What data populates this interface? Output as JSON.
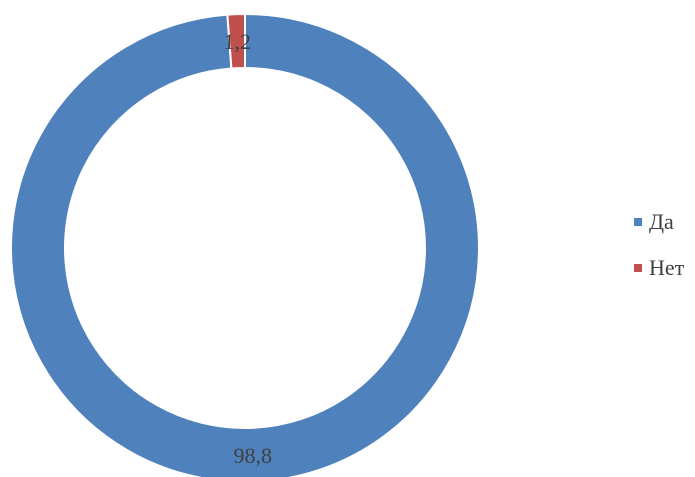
{
  "chart_data": {
    "type": "pie",
    "variant": "doughnut",
    "categories": [
      "Да",
      "Нет"
    ],
    "values": [
      98.8,
      1.2
    ],
    "value_labels": [
      "98,8",
      "1,2"
    ],
    "colors": [
      "#4F81BD",
      "#C0504D"
    ],
    "legend": {
      "position": "right",
      "entries": [
        "Да",
        "Нет"
      ]
    },
    "title": ""
  }
}
